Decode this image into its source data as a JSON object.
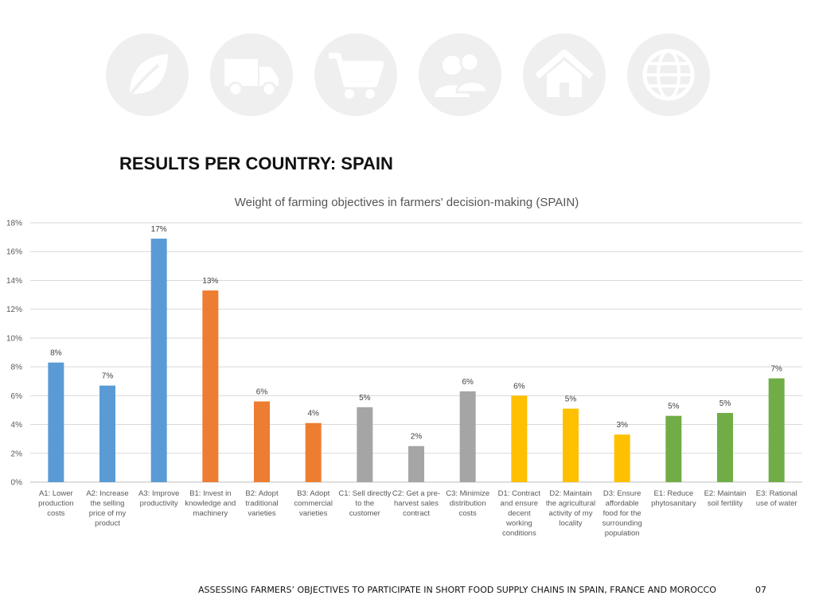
{
  "header": {
    "title": "RESULTS PER COUNTRY: SPAIN",
    "icons": [
      "leaf-icon",
      "truck-icon",
      "cart-icon",
      "people-icon",
      "home-icon",
      "globe-icon"
    ]
  },
  "chart_data": {
    "type": "bar",
    "title": "Weight of farming objectives in farmers' decision-making (SPAIN)",
    "xlabel": "",
    "ylabel": "",
    "ylim": [
      0,
      18
    ],
    "yticks": [
      "0%",
      "2%",
      "4%",
      "6%",
      "8%",
      "10%",
      "12%",
      "14%",
      "16%",
      "18%"
    ],
    "grid": true,
    "legend": "none",
    "categories": [
      "A1: Lower production costs",
      "A2: Increase the selling price of my product",
      "A3: Improve productivity",
      "B1: Invest in knowledge and machinery",
      "B2: Adopt traditional varieties",
      "B3: Adopt commercial varieties",
      "C1: Sell directly to the customer",
      "C2: Get a pre-harvest sales contract",
      "C3: Minimize distribution costs",
      "D1: Contract and ensure decent working conditions",
      "D2: Maintain the agricultural activity of my locality",
      "D3: Ensure affordable food for the surrounding population",
      "E1: Reduce phytosanitary",
      "E2: Maintain soil fertility",
      "E3: Rational use of water"
    ],
    "category_lines": [
      [
        "A1: Lower",
        "production",
        "costs"
      ],
      [
        "A2: Increase",
        "the selling",
        "price of my",
        "product"
      ],
      [
        "A3: Improve",
        "productivity"
      ],
      [
        "B1: Invest in",
        "knowledge and",
        "machinery"
      ],
      [
        "B2: Adopt",
        "traditional",
        "varieties"
      ],
      [
        "B3: Adopt",
        "commercial",
        "varieties"
      ],
      [
        "C1: Sell directly",
        "to the",
        "customer"
      ],
      [
        "C2: Get a pre-",
        "harvest sales",
        "contract"
      ],
      [
        "C3: Minimize",
        "distribution",
        "costs"
      ],
      [
        "D1: Contract",
        "and ensure",
        "decent",
        "working",
        "conditions"
      ],
      [
        "D2: Maintain",
        "the agricultural",
        "activity of my",
        "locality"
      ],
      [
        "D3: Ensure",
        "affordable",
        "food for the",
        "surrounding",
        "population"
      ],
      [
        "E1: Reduce",
        "phytosanitary"
      ],
      [
        "E2: Maintain",
        "soil fertility"
      ],
      [
        "E3: Rational",
        "use of water"
      ]
    ],
    "values": [
      8.3,
      6.7,
      16.9,
      13.3,
      5.6,
      4.1,
      5.2,
      2.5,
      6.3,
      6.0,
      5.1,
      3.3,
      4.6,
      4.8,
      7.2
    ],
    "labels": [
      "8%",
      "7%",
      "17%",
      "13%",
      "6%",
      "4%",
      "5%",
      "2%",
      "6%",
      "6%",
      "5%",
      "3%",
      "5%",
      "5%",
      "7%"
    ],
    "colors": [
      "#5B9BD5",
      "#5B9BD5",
      "#5B9BD5",
      "#ED7D31",
      "#ED7D31",
      "#ED7D31",
      "#A5A5A5",
      "#A5A5A5",
      "#A5A5A5",
      "#FFC000",
      "#FFC000",
      "#FFC000",
      "#70AD47",
      "#70AD47",
      "#70AD47"
    ]
  },
  "footer": {
    "text": "ASSESSING FARMERS’ OBJECTIVES TO PARTICIPATE IN SHORT FOOD SUPPLY CHAINS IN SPAIN, FRANCE AND MOROCCO",
    "page": "07"
  }
}
